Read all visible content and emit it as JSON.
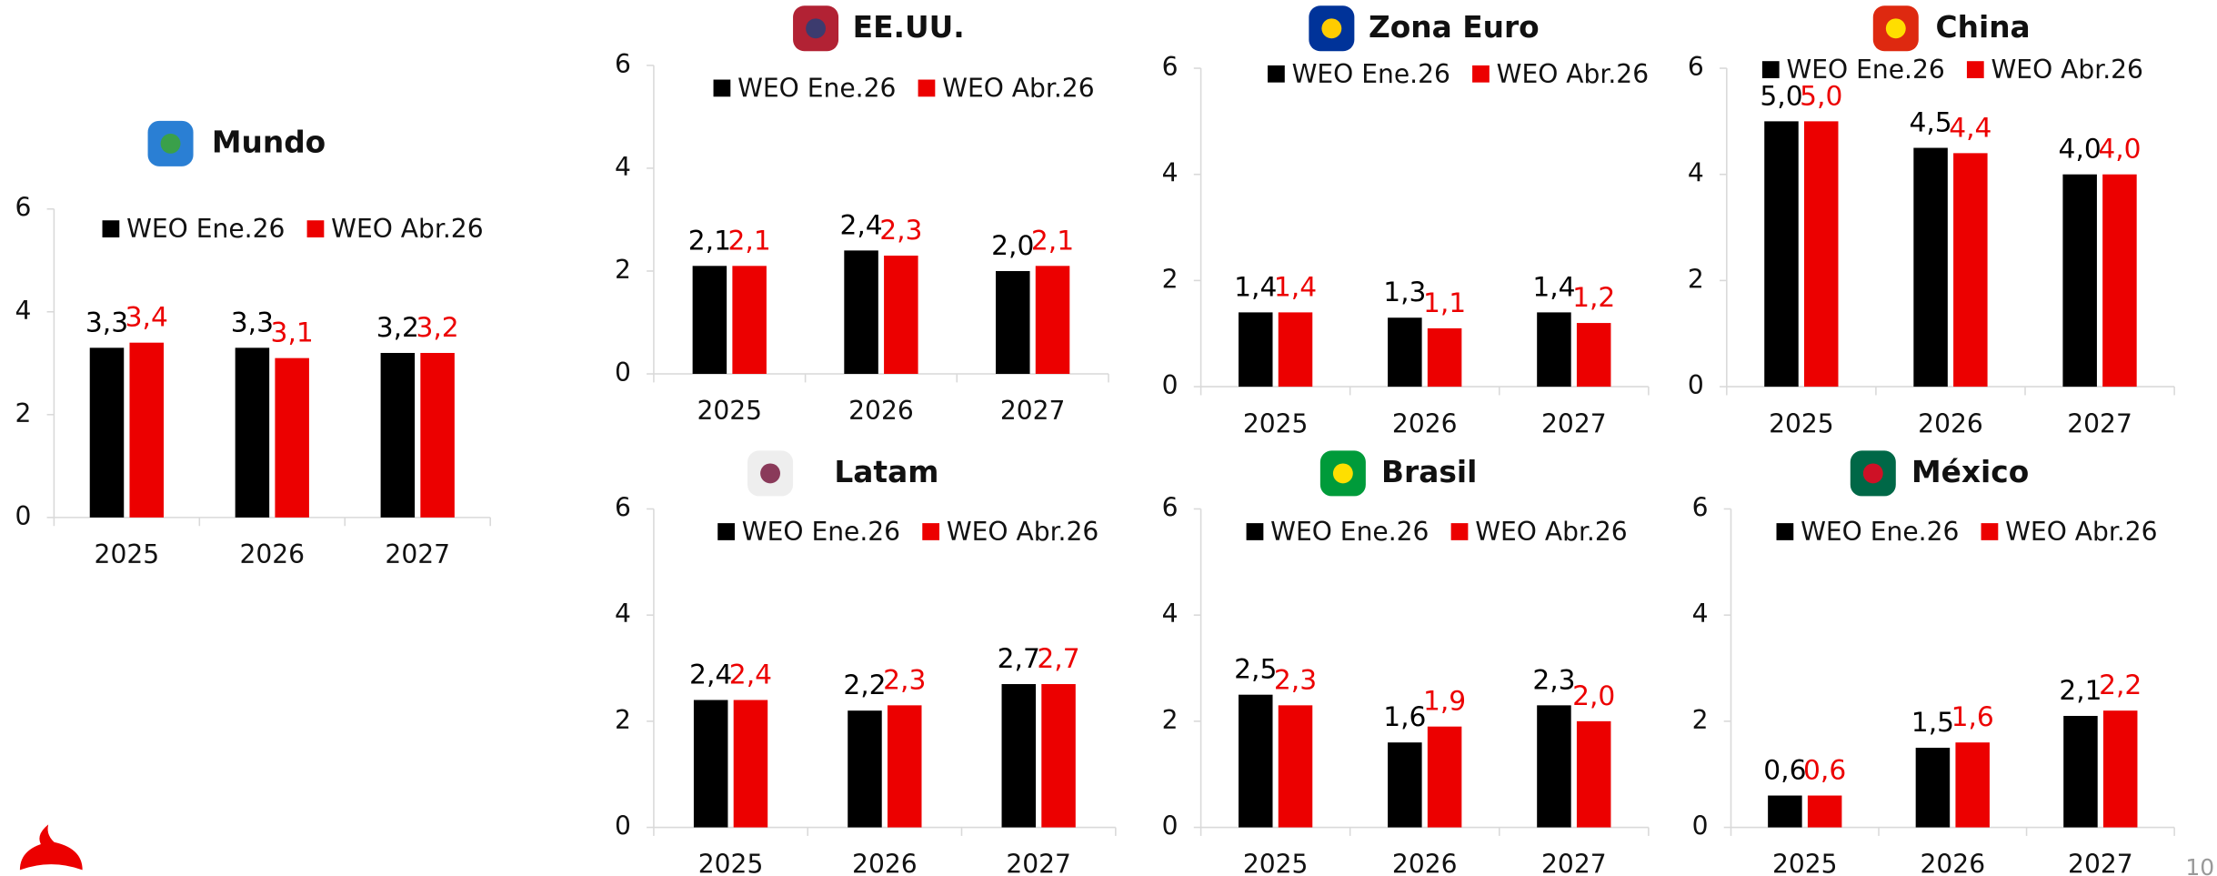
{
  "page_number": "10",
  "chart_data": [
    {
      "type": "bar",
      "title": "Mundo",
      "categories": [
        "2025",
        "2026",
        "2027"
      ],
      "series": [
        {
          "name": "WEO Ene.26",
          "color": "#000000",
          "values": [
            3.3,
            3.3,
            3.2
          ],
          "value_labels": [
            "3,3",
            "3,3",
            "3,2"
          ]
        },
        {
          "name": "WEO Abr.26",
          "color": "#ec0000",
          "values": [
            3.4,
            3.1,
            3.2
          ],
          "value_labels": [
            "3,4",
            "3,1",
            "3,2"
          ]
        }
      ],
      "ylim": [
        0,
        6
      ],
      "yticks": [
        0,
        2,
        4,
        6
      ]
    },
    {
      "type": "bar",
      "title": "EE.UU.",
      "categories": [
        "2025",
        "2026",
        "2027"
      ],
      "series": [
        {
          "name": "WEO Ene.26",
          "color": "#000000",
          "values": [
            2.1,
            2.4,
            2.0
          ],
          "value_labels": [
            "2,1",
            "2,4",
            "2,0"
          ]
        },
        {
          "name": "WEO Abr.26",
          "color": "#ec0000",
          "values": [
            2.1,
            2.3,
            2.1
          ],
          "value_labels": [
            "2,1",
            "2,3",
            "2,1"
          ]
        }
      ],
      "ylim": [
        0,
        6
      ],
      "yticks": [
        0,
        2,
        4,
        6
      ]
    },
    {
      "type": "bar",
      "title": "Zona Euro",
      "categories": [
        "2025",
        "2026",
        "2027"
      ],
      "series": [
        {
          "name": "WEO Ene.26",
          "color": "#000000",
          "values": [
            1.4,
            1.3,
            1.4
          ],
          "value_labels": [
            "1,4",
            "1,3",
            "1,4"
          ]
        },
        {
          "name": "WEO Abr.26",
          "color": "#ec0000",
          "values": [
            1.4,
            1.1,
            1.2
          ],
          "value_labels": [
            "1,4",
            "1,1",
            "1,2"
          ]
        }
      ],
      "ylim": [
        0,
        6
      ],
      "yticks": [
        0,
        2,
        4,
        6
      ]
    },
    {
      "type": "bar",
      "title": "China",
      "categories": [
        "2025",
        "2026",
        "2027"
      ],
      "series": [
        {
          "name": "WEO Ene.26",
          "color": "#000000",
          "values": [
            5.0,
            4.5,
            4.0
          ],
          "value_labels": [
            "5,0",
            "4,5",
            "4,0"
          ]
        },
        {
          "name": "WEO Abr.26",
          "color": "#ec0000",
          "values": [
            5.0,
            4.4,
            4.0
          ],
          "value_labels": [
            "5,0",
            "4,4",
            "4,0"
          ]
        }
      ],
      "ylim": [
        0,
        6
      ],
      "yticks": [
        0,
        2,
        4,
        6
      ]
    },
    {
      "type": "bar",
      "title": "Latam",
      "categories": [
        "2025",
        "2026",
        "2027"
      ],
      "series": [
        {
          "name": "WEO Ene.26",
          "color": "#000000",
          "values": [
            2.4,
            2.2,
            2.7
          ],
          "value_labels": [
            "2,4",
            "2,2",
            "2,7"
          ]
        },
        {
          "name": "WEO Abr.26",
          "color": "#ec0000",
          "values": [
            2.4,
            2.3,
            2.7
          ],
          "value_labels": [
            "2,4",
            "2,3",
            "2,7"
          ]
        }
      ],
      "ylim": [
        0,
        6
      ],
      "yticks": [
        0,
        2,
        4,
        6
      ]
    },
    {
      "type": "bar",
      "title": "Brasil",
      "categories": [
        "2025",
        "2026",
        "2027"
      ],
      "series": [
        {
          "name": "WEO Ene.26",
          "color": "#000000",
          "values": [
            2.5,
            1.6,
            2.3
          ],
          "value_labels": [
            "2,5",
            "1,6",
            "2,3"
          ]
        },
        {
          "name": "WEO Abr.26",
          "color": "#ec0000",
          "values": [
            2.3,
            1.9,
            2.0
          ],
          "value_labels": [
            "2,3",
            "1,9",
            "2,0"
          ]
        }
      ],
      "ylim": [
        0,
        6
      ],
      "yticks": [
        0,
        2,
        4,
        6
      ]
    },
    {
      "type": "bar",
      "title": "México",
      "categories": [
        "2025",
        "2026",
        "2027"
      ],
      "series": [
        {
          "name": "WEO Ene.26",
          "color": "#000000",
          "values": [
            0.6,
            1.5,
            2.1
          ],
          "value_labels": [
            "0,6",
            "1,5",
            "2,1"
          ]
        },
        {
          "name": "WEO Abr.26",
          "color": "#ec0000",
          "values": [
            0.6,
            1.6,
            2.2
          ],
          "value_labels": [
            "0,6",
            "1,6",
            "2,2"
          ]
        }
      ],
      "ylim": [
        0,
        6
      ],
      "yticks": [
        0,
        2,
        4,
        6
      ]
    }
  ]
}
